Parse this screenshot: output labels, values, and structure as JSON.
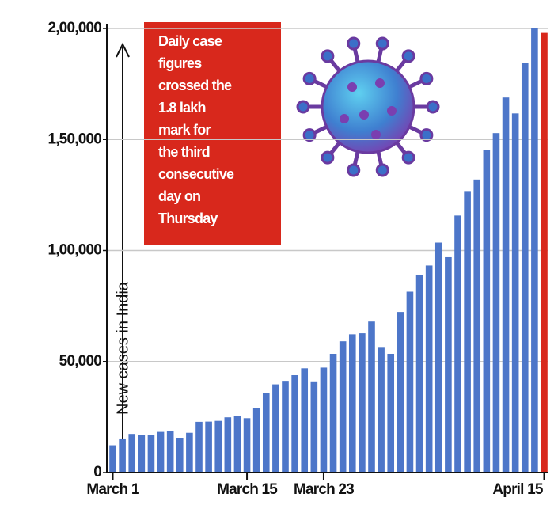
{
  "chart_data": {
    "type": "bar",
    "y_label": "New cases in India",
    "annotation_lines": [
      "Daily case",
      "figures",
      "crossed the",
      "1.8 lakh",
      "mark for",
      "the third",
      "consecutive",
      "day on",
      "Thursday"
    ],
    "categories": [
      "March 1",
      null,
      null,
      null,
      null,
      null,
      null,
      null,
      null,
      null,
      null,
      null,
      null,
      null,
      "March 15",
      null,
      null,
      null,
      null,
      null,
      null,
      null,
      "March 23",
      null,
      null,
      null,
      null,
      null,
      null,
      null,
      null,
      null,
      null,
      null,
      null,
      null,
      null,
      null,
      null,
      null,
      null,
      null,
      null,
      null,
      null,
      "April 15"
    ],
    "values": [
      12286,
      14989,
      17407,
      17070,
      16838,
      18327,
      18711,
      15388,
      17921,
      22854,
      22956,
      23285,
      24882,
      25320,
      24492,
      28903,
      35871,
      39726,
      40953,
      43846,
      46951,
      40715,
      47262,
      53476,
      59118,
      62258,
      62714,
      68020,
      56211,
      53480,
      72330,
      81466,
      89129,
      93249,
      103558,
      96982,
      115736,
      126789,
      131968,
      145384,
      152879,
      168912,
      161736,
      184372,
      200000,
      198000
    ],
    "colors": [
      "#4d76c9",
      "#4d76c9",
      "#4d76c9",
      "#4d76c9",
      "#4d76c9",
      "#4d76c9",
      "#4d76c9",
      "#4d76c9",
      "#4d76c9",
      "#4d76c9",
      "#4d76c9",
      "#4d76c9",
      "#4d76c9",
      "#4d76c9",
      "#4d76c9",
      "#4d76c9",
      "#4d76c9",
      "#4d76c9",
      "#4d76c9",
      "#4d76c9",
      "#4d76c9",
      "#4d76c9",
      "#4d76c9",
      "#4d76c9",
      "#4d76c9",
      "#4d76c9",
      "#4d76c9",
      "#4d76c9",
      "#4d76c9",
      "#4d76c9",
      "#4d76c9",
      "#4d76c9",
      "#4d76c9",
      "#4d76c9",
      "#4d76c9",
      "#4d76c9",
      "#4d76c9",
      "#4d76c9",
      "#4d76c9",
      "#4d76c9",
      "#4d76c9",
      "#4d76c9",
      "#4d76c9",
      "#4d76c9",
      "#4d76c9",
      "#d8281c"
    ],
    "ylim": [
      0,
      200000
    ],
    "yticks": [
      0,
      {
        "value": 50000,
        "label": "50,000"
      },
      {
        "value": 100000,
        "label": "1,00,000"
      },
      {
        "value": 150000,
        "label": "1,50,000"
      },
      {
        "value": 200000,
        "label": "2,00,000"
      }
    ],
    "grid": true
  }
}
